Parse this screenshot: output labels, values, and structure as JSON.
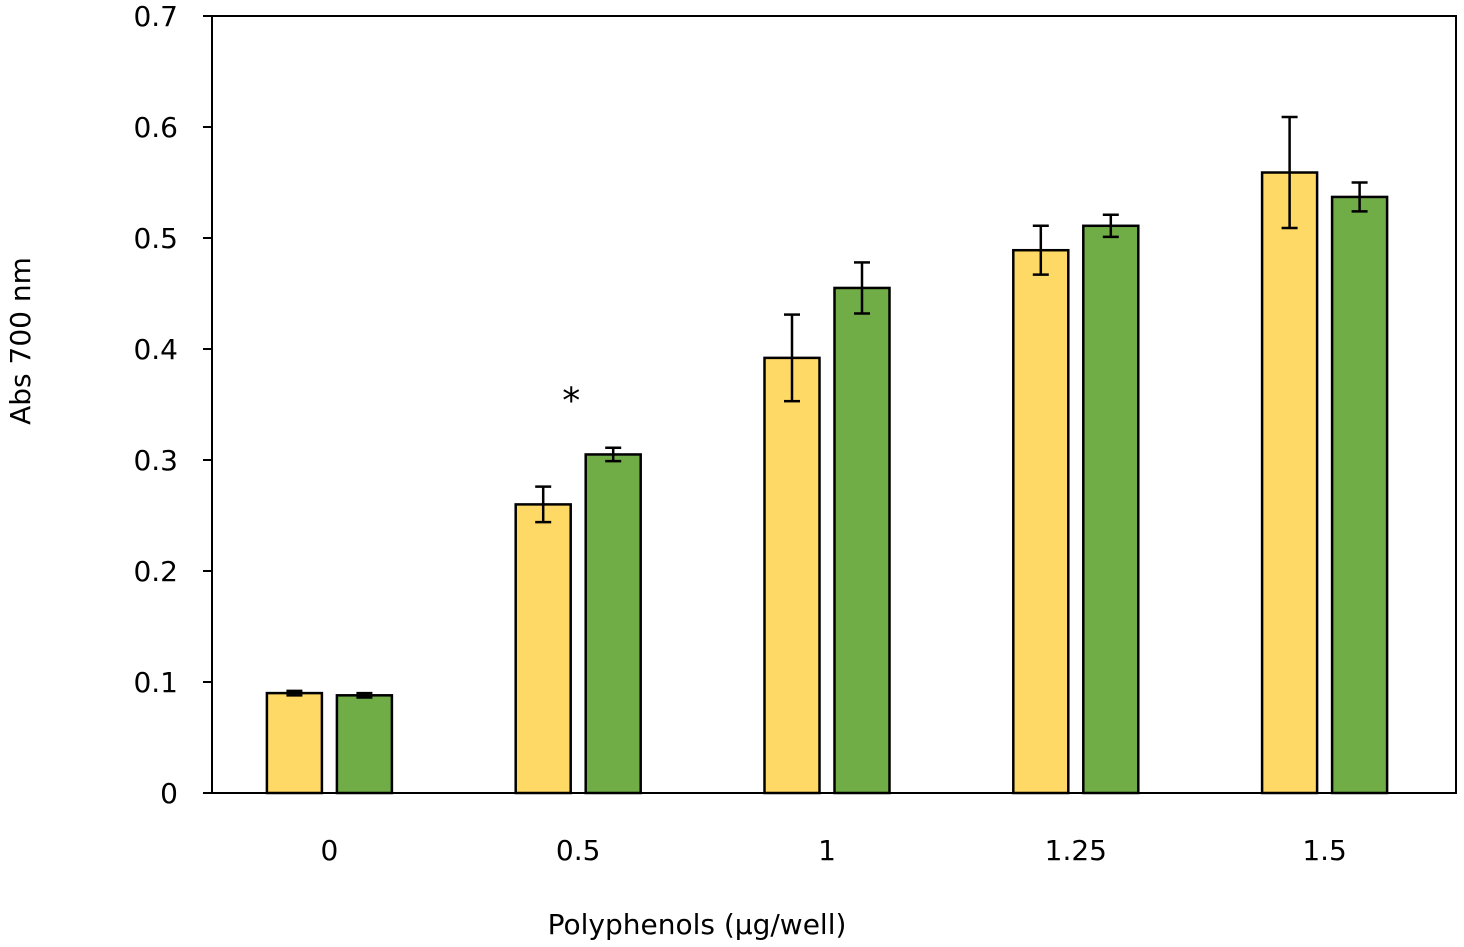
{
  "chart_data": {
    "type": "bar",
    "title": "",
    "xlabel": "Polyphenols (μg/well)",
    "ylabel": "Abs 700 nm",
    "ylim": [
      0,
      0.7
    ],
    "yticks": [
      0,
      0.1,
      0.2,
      0.3,
      0.4,
      0.5,
      0.6,
      0.7
    ],
    "ytick_labels": [
      "0",
      "0.1",
      "0.2",
      "0.3",
      "0.4",
      "0.5",
      "0.6",
      "0.7"
    ],
    "categories": [
      "0",
      "0.5",
      "1",
      "1.25",
      "1.5"
    ],
    "grid": false,
    "series": [
      {
        "name": "Series 1",
        "color": "#FFD966",
        "values": [
          0.09,
          0.26,
          0.392,
          0.489,
          0.559
        ],
        "errors": [
          0.002,
          0.016,
          0.039,
          0.022,
          0.05
        ]
      },
      {
        "name": "Series 2",
        "color": "#70AD47",
        "values": [
          0.088,
          0.305,
          0.455,
          0.511,
          0.537
        ],
        "errors": [
          0.002,
          0.006,
          0.023,
          0.01,
          0.013
        ]
      }
    ],
    "annotations": [
      {
        "text": "*",
        "category_index": 1,
        "value": 0.37
      }
    ]
  }
}
